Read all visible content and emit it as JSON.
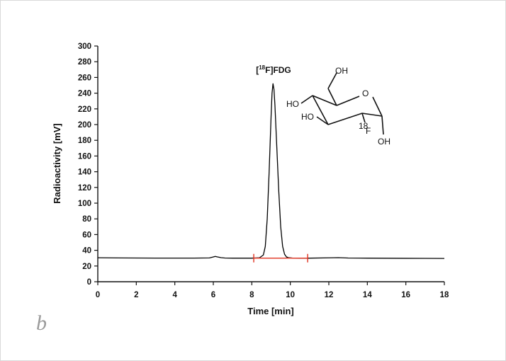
{
  "panel_letter": "b",
  "chart_data": {
    "type": "line",
    "title": "",
    "xlabel": "Time [min]",
    "ylabel": "Radioactivity [mV]",
    "xlim": [
      0,
      18
    ],
    "ylim": [
      0,
      300
    ],
    "xticks": [
      0,
      2,
      4,
      6,
      8,
      10,
      12,
      14,
      16,
      18
    ],
    "yticks": [
      0,
      20,
      40,
      60,
      80,
      100,
      120,
      140,
      160,
      180,
      200,
      220,
      240,
      260,
      280,
      300
    ],
    "line_color": "#000000",
    "series": [
      {
        "name": "",
        "x": [
          0,
          1,
          2,
          3,
          4,
          5,
          5.8,
          6.0,
          6.1,
          6.2,
          6.4,
          6.6,
          7,
          8,
          8.4,
          8.6,
          8.7,
          8.8,
          8.9,
          9.0,
          9.05,
          9.1,
          9.15,
          9.2,
          9.3,
          9.4,
          9.5,
          9.6,
          9.7,
          9.8,
          9.9,
          10.1,
          10.5,
          11,
          12,
          12.5,
          13,
          14,
          15,
          16,
          17,
          18
        ],
        "y": [
          30.5,
          30.3,
          30.2,
          30.1,
          30.1,
          30.1,
          30.3,
          31.5,
          32.2,
          31.6,
          30.6,
          30.2,
          30.0,
          30.0,
          30.5,
          34,
          45,
          80,
          140,
          210,
          240,
          252,
          245,
          225,
          170,
          115,
          70,
          45,
          35,
          31.5,
          30.6,
          30.2,
          30.0,
          30.0,
          30.4,
          30.6,
          30.2,
          30.0,
          29.9,
          29.8,
          29.7,
          29.6
        ]
      }
    ],
    "integration_range": {
      "start": 8.1,
      "end": 10.9,
      "level": 30,
      "color": "#e0301e"
    },
    "annotations": [
      {
        "text": "FDG",
        "prefix": "[",
        "superscript": "18",
        "element": "F]",
        "x": 9.1,
        "y": 262
      }
    ]
  },
  "structure": {
    "labels": {
      "oh_top": "OH",
      "o_ring": "O",
      "ho_left_upper": "HO",
      "ho_left_lower": "HO",
      "oh_bottom": "OH",
      "f_mass": "18",
      "f_symbol": "F"
    },
    "fluorine_color": "#e0301e"
  }
}
